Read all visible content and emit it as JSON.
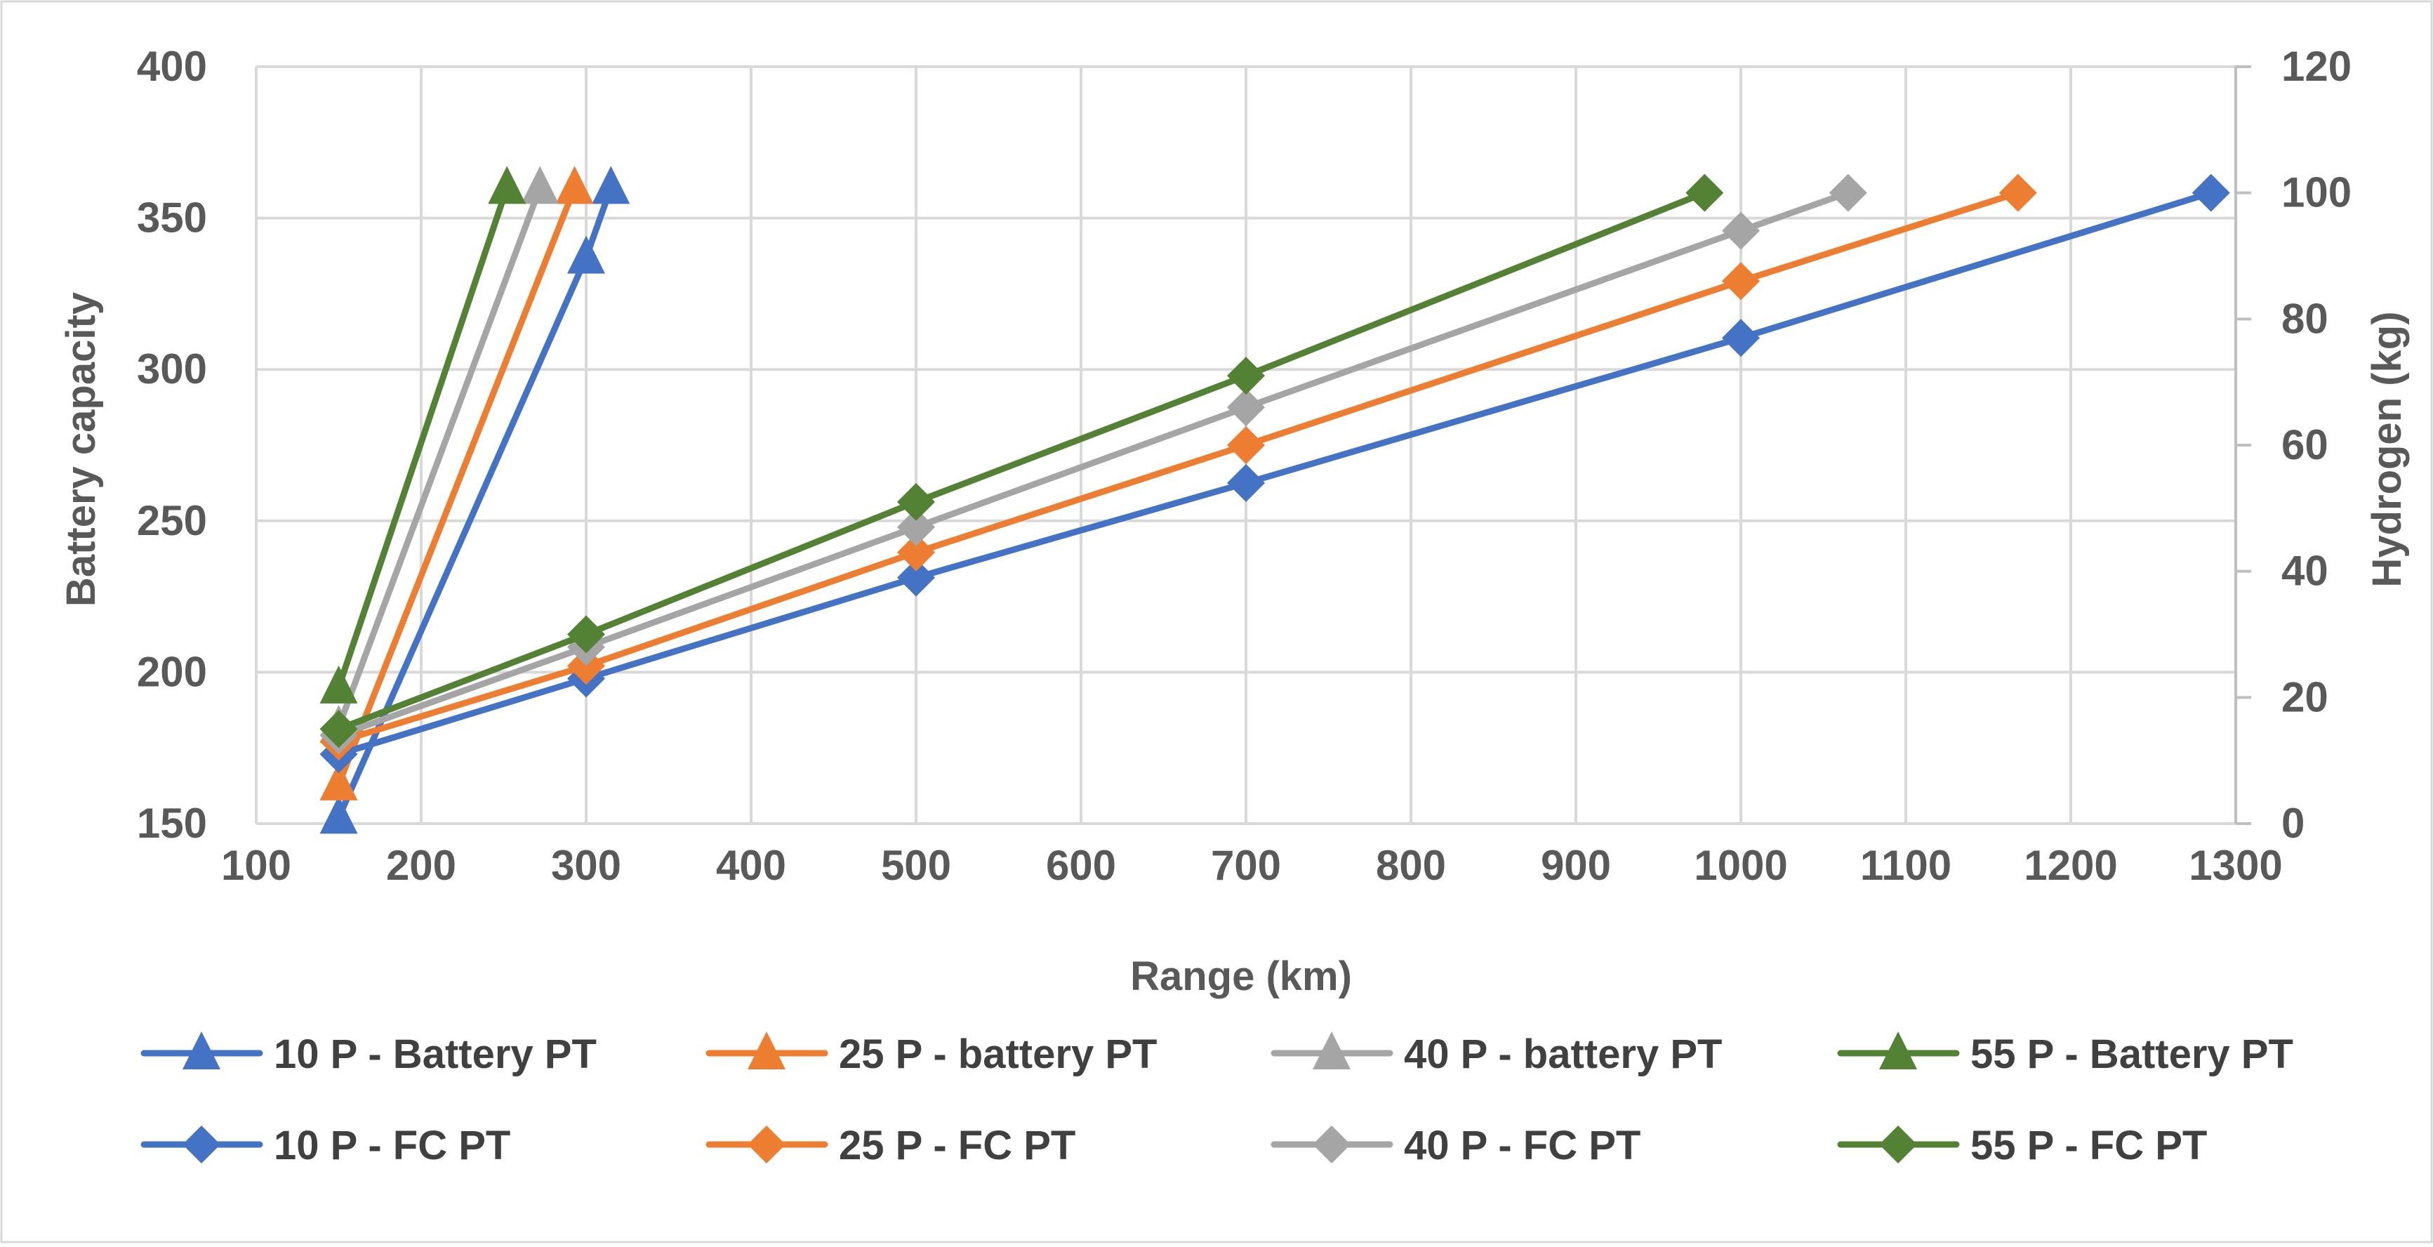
{
  "chart_data": {
    "type": "scatter",
    "title": "",
    "xlabel": "Range (km)",
    "ylabel": "Battery capacity",
    "y2label": "Hydrogen (kg)",
    "xlim": [
      100,
      1300
    ],
    "ylim": [
      150,
      400
    ],
    "y2lim": [
      0,
      120
    ],
    "x_ticks": [
      100,
      200,
      300,
      400,
      500,
      600,
      700,
      800,
      900,
      1000,
      1100,
      1200,
      1300
    ],
    "y_ticks": [
      150,
      200,
      250,
      300,
      350,
      400
    ],
    "y2_ticks": [
      0,
      20,
      40,
      60,
      80,
      100,
      120
    ],
    "grid": true,
    "legend_position": "bottom",
    "colors": {
      "blue": "#4472C4",
      "orange": "#ED7D31",
      "gray": "#A5A5A5",
      "green": "#548235"
    },
    "series": [
      {
        "name": "10 P - Battery PT",
        "axis": "y1",
        "marker": "triangle",
        "color": "#4472C4",
        "points": [
          [
            150,
            152
          ],
          [
            300,
            337
          ],
          [
            315,
            360
          ]
        ]
      },
      {
        "name": "25 P - battery PT",
        "axis": "y1",
        "marker": "triangle",
        "color": "#ED7D31",
        "points": [
          [
            150,
            163
          ],
          [
            293,
            360
          ]
        ]
      },
      {
        "name": "40 P - battery PT",
        "axis": "y1",
        "marker": "triangle",
        "color": "#A5A5A5",
        "points": [
          [
            150,
            182
          ],
          [
            272,
            360
          ]
        ]
      },
      {
        "name": "55 P - Battery PT",
        "axis": "y1",
        "marker": "triangle",
        "color": "#548235",
        "points": [
          [
            150,
            195
          ],
          [
            252,
            360
          ]
        ]
      },
      {
        "name": "10 P - FC PT",
        "axis": "y2",
        "marker": "diamond",
        "color": "#4472C4",
        "points": [
          [
            150,
            11
          ],
          [
            300,
            23
          ],
          [
            500,
            39
          ],
          [
            700,
            54
          ],
          [
            1000,
            77
          ],
          [
            1285,
            100
          ]
        ]
      },
      {
        "name": "25 P - FC PT",
        "axis": "y2",
        "marker": "diamond",
        "color": "#ED7D31",
        "points": [
          [
            150,
            13
          ],
          [
            300,
            25
          ],
          [
            500,
            43
          ],
          [
            700,
            60
          ],
          [
            1000,
            86
          ],
          [
            1168,
            100
          ]
        ]
      },
      {
        "name": "40 P - FC PT",
        "axis": "y2",
        "marker": "diamond",
        "color": "#A5A5A5",
        "points": [
          [
            150,
            14
          ],
          [
            300,
            28
          ],
          [
            500,
            47
          ],
          [
            700,
            66
          ],
          [
            1000,
            94
          ],
          [
            1065,
            100
          ]
        ]
      },
      {
        "name": "55 P - FC PT",
        "axis": "y2",
        "marker": "diamond",
        "color": "#548235",
        "points": [
          [
            150,
            15
          ],
          [
            300,
            30
          ],
          [
            500,
            51
          ],
          [
            700,
            71
          ],
          [
            978,
            100
          ]
        ]
      }
    ]
  }
}
